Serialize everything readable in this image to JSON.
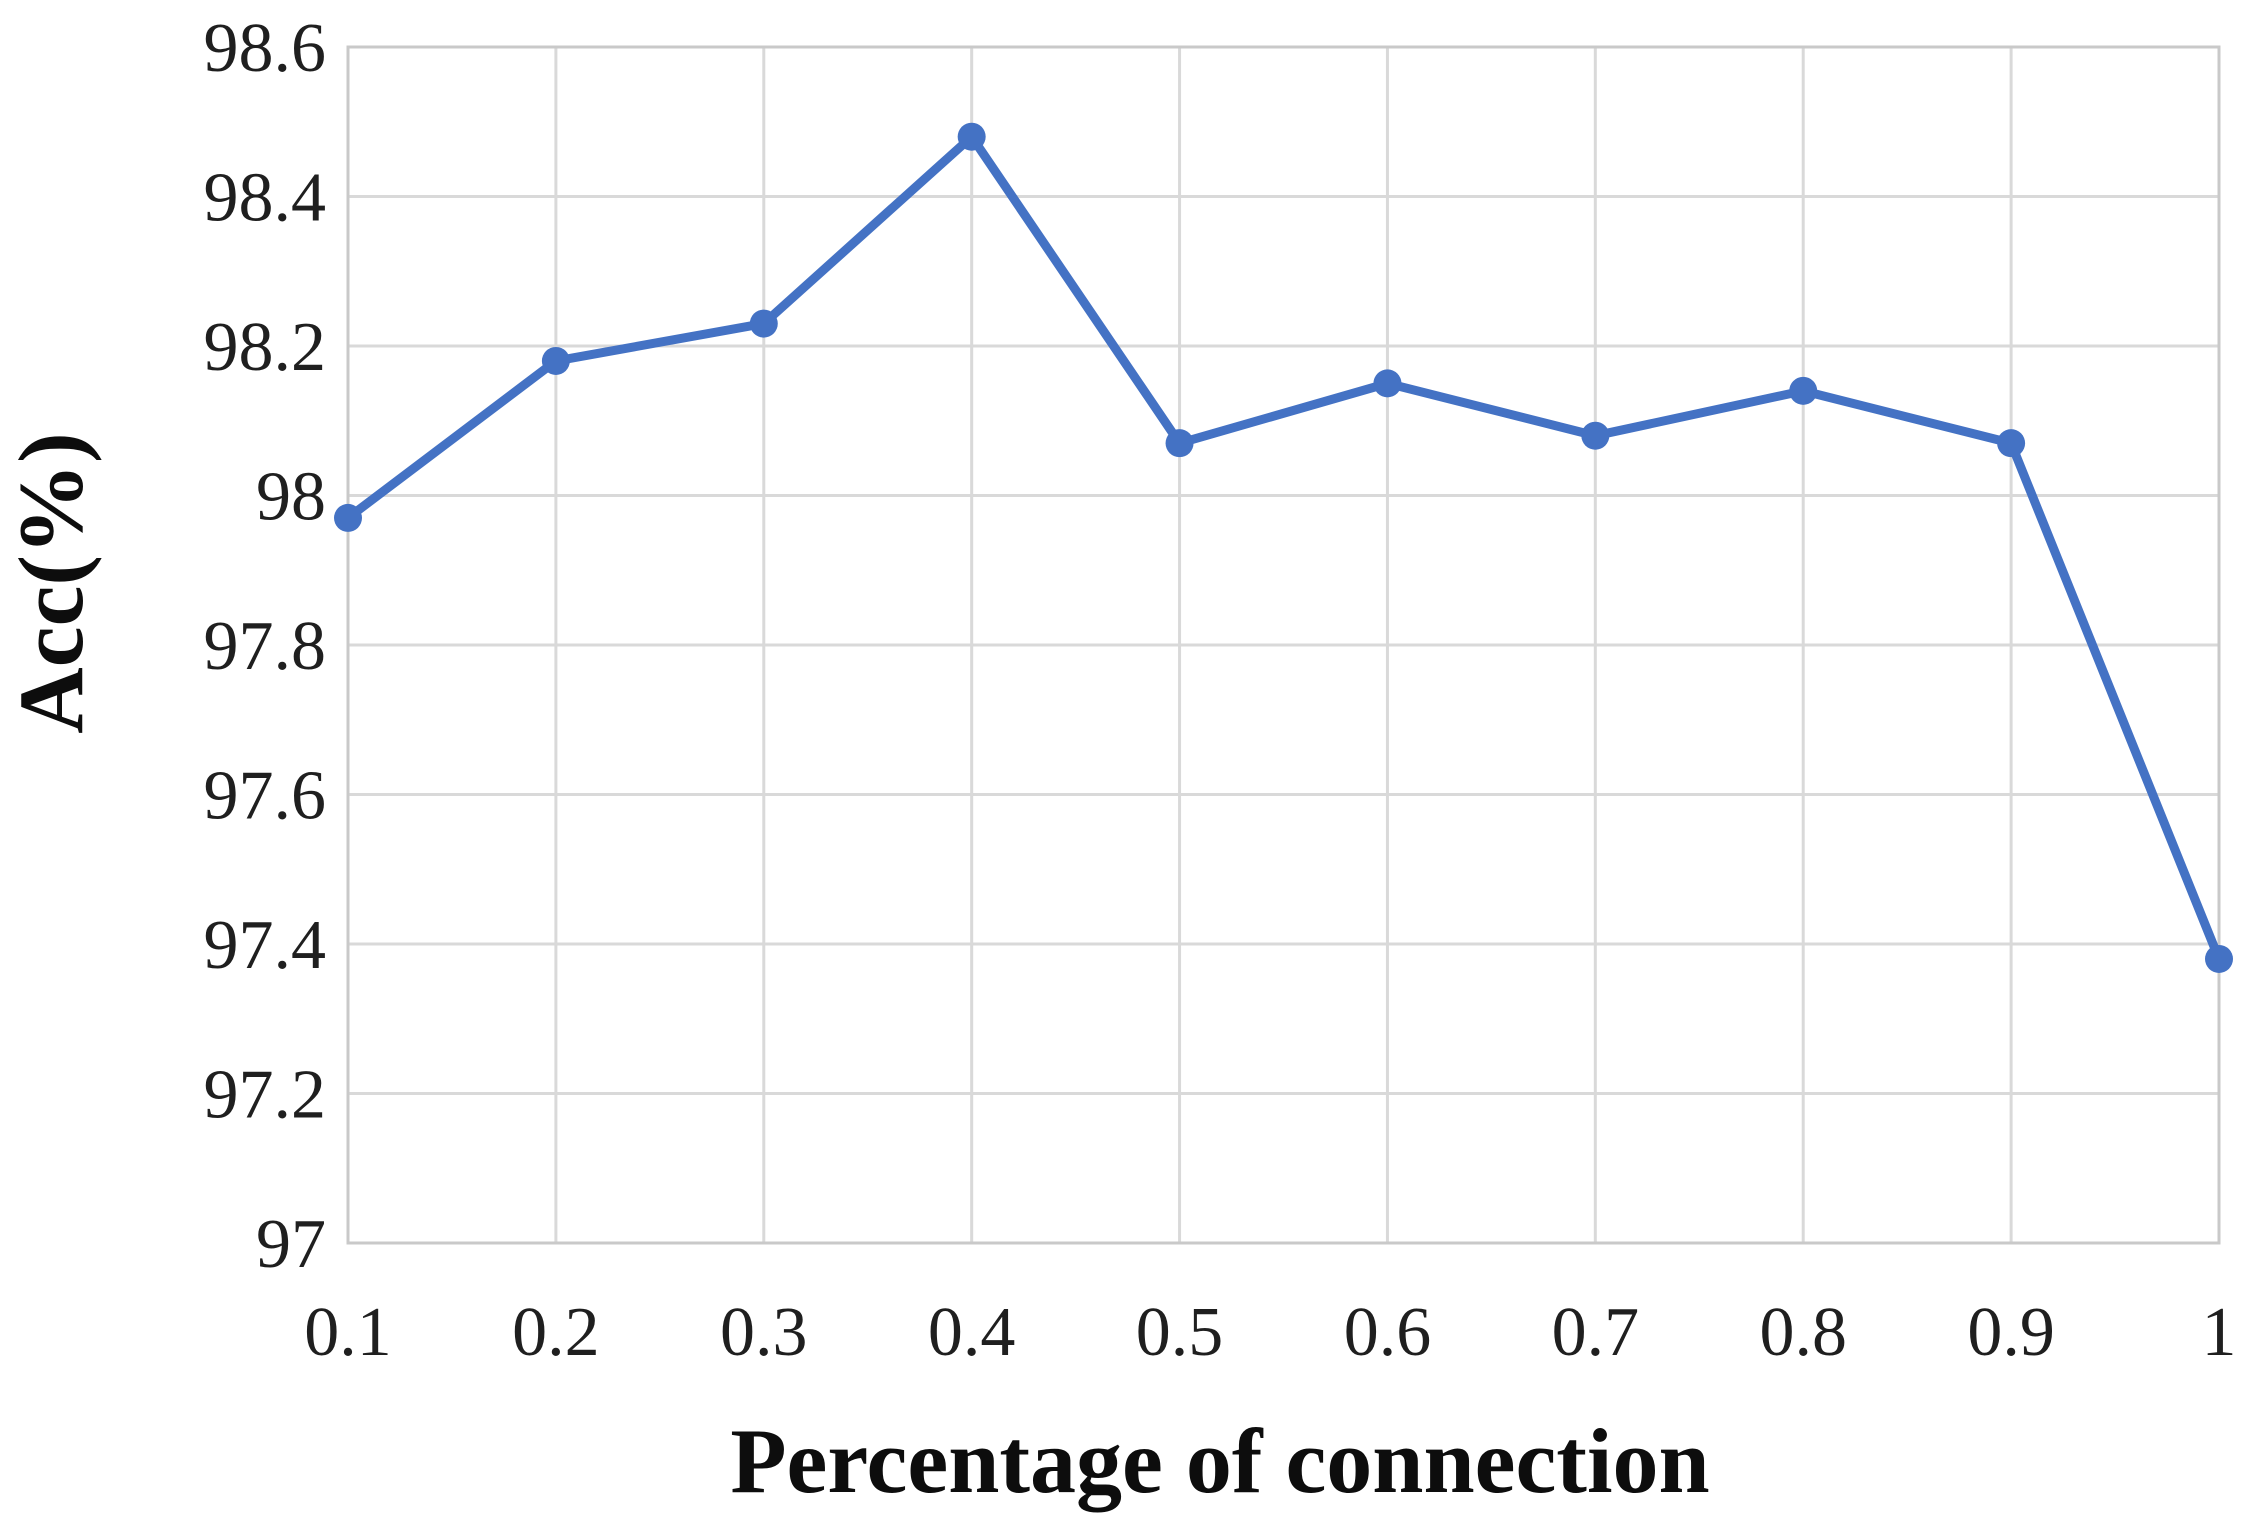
{
  "chart_data": {
    "type": "line",
    "title": "",
    "xlabel": "Percentage of connection",
    "ylabel": "Acc(%)",
    "x": [
      0.1,
      0.2,
      0.3,
      0.4,
      0.5,
      0.6,
      0.7,
      0.8,
      0.9,
      1
    ],
    "x_tick_labels": [
      "0.1",
      "0.2",
      "0.3",
      "0.4",
      "0.5",
      "0.6",
      "0.7",
      "0.8",
      "0.9",
      "1"
    ],
    "series": [
      {
        "name": "Acc(%)",
        "values": [
          97.97,
          98.18,
          98.23,
          98.48,
          98.07,
          98.15,
          98.08,
          98.14,
          98.07,
          97.38
        ]
      }
    ],
    "ylim": [
      97,
      98.6
    ],
    "y_ticks": [
      97,
      97.2,
      97.4,
      97.6,
      97.8,
      98,
      98.2,
      98.4,
      98.6
    ],
    "y_tick_labels": [
      "97",
      "97.2",
      "97.4",
      "97.6",
      "97.8",
      "98",
      "98.2",
      "98.4",
      "98.6"
    ],
    "grid": true,
    "legend": false,
    "line_color": "#4472C4",
    "marker": "circle",
    "grid_color": "#d9d9d9",
    "frame_color": "#c9c9c9",
    "background": "#ffffff"
  }
}
